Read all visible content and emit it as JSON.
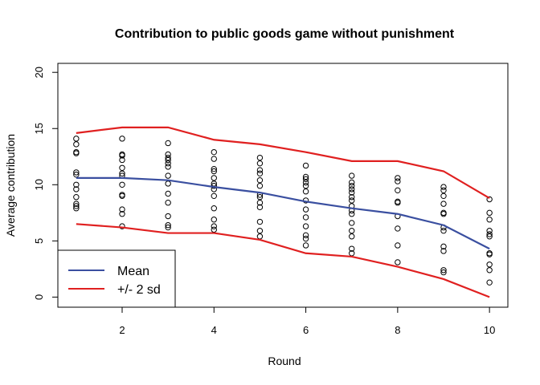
{
  "chart_data": {
    "type": "line",
    "title": "Contribution to public goods game without punishment",
    "xlabel": "Round",
    "ylabel": "Average contribution",
    "xlim": [
      0.6,
      10.4
    ],
    "ylim": [
      -0.9,
      20.8
    ],
    "x_ticks": [
      2,
      4,
      6,
      8,
      10
    ],
    "y_ticks": [
      0,
      5,
      10,
      15,
      20
    ],
    "grid": false,
    "legend_position": "bottom-left",
    "x": [
      1,
      2,
      3,
      4,
      5,
      6,
      7,
      8,
      9,
      10
    ],
    "series": [
      {
        "name": "Mean",
        "color": "#3a4fa0",
        "values": [
          10.6,
          10.6,
          10.4,
          9.8,
          9.3,
          8.5,
          7.9,
          7.4,
          6.4,
          4.3
        ]
      },
      {
        "name": "+/- 2 sd",
        "color": "#e02020",
        "values": [
          14.6,
          15.1,
          15.1,
          14.0,
          13.6,
          12.9,
          12.1,
          12.1,
          11.2,
          8.8
        ]
      },
      {
        "color": "#e02020",
        "values": [
          6.5,
          6.2,
          5.7,
          5.7,
          5.1,
          3.9,
          3.6,
          2.7,
          1.6,
          0.0
        ]
      }
    ],
    "points": [
      [
        14.1,
        13.6,
        12.9,
        12.8,
        11.1,
        10.9,
        10.0,
        9.6,
        8.9,
        8.3,
        8.1,
        7.9
      ],
      [
        14.1,
        12.7,
        12.6,
        12.2,
        11.5,
        11.0,
        10.8,
        10.0,
        9.1,
        9.0,
        7.8,
        7.4,
        6.3
      ],
      [
        13.7,
        12.7,
        12.4,
        12.2,
        11.9,
        11.6,
        10.8,
        10.1,
        9.2,
        8.4,
        7.2,
        6.4,
        6.2
      ],
      [
        12.9,
        12.3,
        11.4,
        11.2,
        10.6,
        10.1,
        9.9,
        9.6,
        9.0,
        7.9,
        6.9,
        6.3,
        6.0
      ],
      [
        12.4,
        11.9,
        11.3,
        11.0,
        10.4,
        9.9,
        9.1,
        8.9,
        8.4,
        8.0,
        6.7,
        5.9,
        5.4
      ],
      [
        11.7,
        10.7,
        10.5,
        10.2,
        9.9,
        9.4,
        8.6,
        7.8,
        7.1,
        6.3,
        5.5,
        5.2,
        4.6
      ],
      [
        10.8,
        10.2,
        9.9,
        9.6,
        9.3,
        8.9,
        8.6,
        8.1,
        7.7,
        7.4,
        6.6,
        5.9,
        5.4,
        4.3,
        3.9
      ],
      [
        10.6,
        10.3,
        9.5,
        8.5,
        8.4,
        7.2,
        6.1,
        4.6,
        3.1
      ],
      [
        9.8,
        9.5,
        9.0,
        8.3,
        7.5,
        7.4,
        6.2,
        5.9,
        4.5,
        4.1,
        2.4,
        2.2
      ],
      [
        8.7,
        7.5,
        6.9,
        5.9,
        5.6,
        5.4,
        3.9,
        3.8,
        2.9,
        2.4,
        1.3
      ]
    ]
  }
}
